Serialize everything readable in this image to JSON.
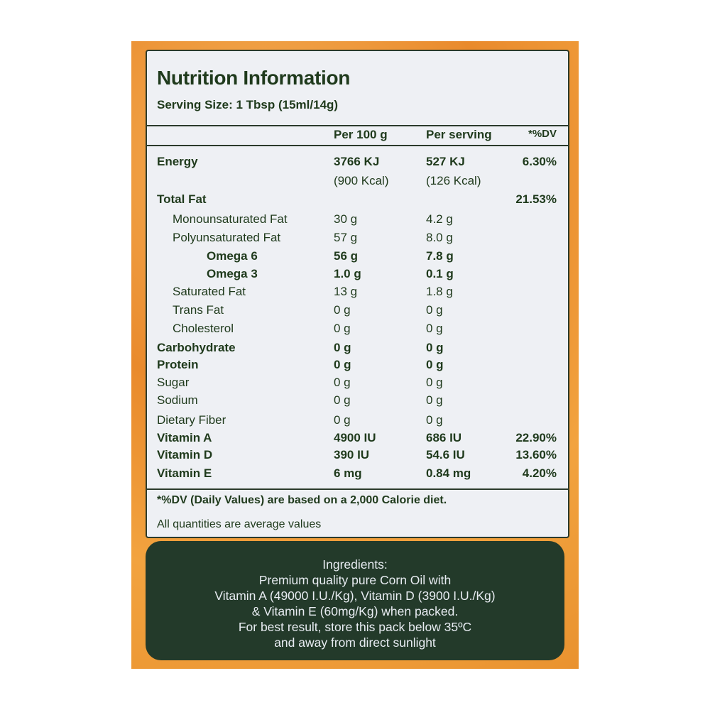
{
  "title": "Nutrition Information",
  "serving_size": "Serving Size: 1 Tbsp (15ml/14g)",
  "columns": {
    "per100": "Per 100 g",
    "per_serving": "Per serving",
    "dv": "*%DV"
  },
  "rows": [
    {
      "label": "Energy",
      "per100": "3766 KJ",
      "per_serving": "527 KJ",
      "dv": "6.30%",
      "bold": true,
      "indent": 0,
      "per100_sub": "(900 Kcal)",
      "per_serving_sub": "(126 Kcal)"
    },
    {
      "label": "Total Fat",
      "per100": "",
      "per_serving": "",
      "dv": "21.53%",
      "bold": true,
      "indent": 0
    },
    {
      "label": "Monounsaturated Fat",
      "per100": "30 g",
      "per_serving": "4.2 g",
      "dv": "",
      "bold": false,
      "indent": 1
    },
    {
      "label": "Polyunsaturated Fat",
      "per100": "57 g",
      "per_serving": "8.0 g",
      "dv": "",
      "bold": false,
      "indent": 1
    },
    {
      "label": "Omega 6",
      "per100": "56 g",
      "per_serving": "7.8 g",
      "dv": "",
      "bold": true,
      "indent": 2
    },
    {
      "label": "Omega 3",
      "per100": "1.0 g",
      "per_serving": "0.1 g",
      "dv": "",
      "bold": true,
      "indent": 2
    },
    {
      "label": "Saturated Fat",
      "per100": "13 g",
      "per_serving": "1.8 g",
      "dv": "",
      "bold": false,
      "indent": 1
    },
    {
      "label": "Trans Fat",
      "per100": "0 g",
      "per_serving": "0 g",
      "dv": "",
      "bold": false,
      "indent": 1
    },
    {
      "label": "Cholesterol",
      "per100": "0 g",
      "per_serving": "0 g",
      "dv": "",
      "bold": false,
      "indent": 1
    },
    {
      "label": "Carbohydrate",
      "per100": "0 g",
      "per_serving": "0 g",
      "dv": "",
      "bold": true,
      "indent": 0
    },
    {
      "label": "Protein",
      "per100": "0 g",
      "per_serving": "0 g",
      "dv": "",
      "bold": true,
      "indent": 0
    },
    {
      "label": "Sugar",
      "per100": "0 g",
      "per_serving": "0 g",
      "dv": "",
      "bold": false,
      "indent": 0
    },
    {
      "label": "Sodium",
      "per100": "0 g",
      "per_serving": "0 g",
      "dv": "",
      "bold": false,
      "indent": 0
    },
    {
      "label": "Dietary Fiber",
      "per100": "0 g",
      "per_serving": "0 g",
      "dv": "",
      "bold": false,
      "indent": 0
    },
    {
      "label": "Vitamin A",
      "per100": "4900 IU",
      "per_serving": "686 IU",
      "dv": "22.90%",
      "bold": true,
      "indent": 0
    },
    {
      "label": "Vitamin D",
      "per100": "390 IU",
      "per_serving": "54.6 IU",
      "dv": "13.60%",
      "bold": true,
      "indent": 0
    },
    {
      "label": "Vitamin E",
      "per100": "6 mg",
      "per_serving": "0.84 mg",
      "dv": "4.20%",
      "bold": true,
      "indent": 0
    }
  ],
  "footnote": "*%DV (Daily Values) are based on a 2,000 Calorie diet.",
  "footnote2": "All quantities are average values",
  "ingredients": {
    "heading": "Ingredients:",
    "lines": [
      "Premium quality pure Corn Oil with",
      "Vitamin A (49000 I.U./Kg), Vitamin D (3900 I.U./Kg)",
      "& Vitamin E (60mg/Kg) when packed.",
      "For best result, store this pack below 35ºC",
      "and away from direct sunlight"
    ]
  },
  "colors": {
    "text": "#1f3a1c",
    "panel": "#233a2a",
    "background": "#e98a2c"
  }
}
